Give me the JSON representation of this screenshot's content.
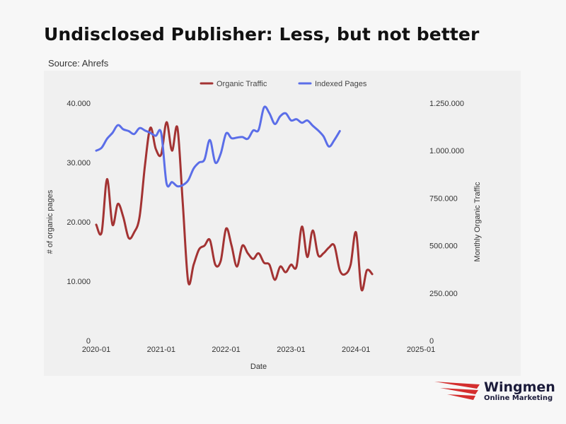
{
  "header": {
    "title": "Undisclosed Publisher: Less, but not better",
    "source": "Source: Ahrefs"
  },
  "brand": {
    "name": "Wingmen",
    "tagline": "Online Marketing",
    "color": "#d42e2e"
  },
  "chart_data": {
    "type": "line",
    "xlabel": "Date",
    "ylabel_left": "# of organic pages",
    "ylabel_right": "Monthly Organic Traffic",
    "x_range": [
      "2020-01",
      "2025-01"
    ],
    "x_ticks": [
      "2020-01",
      "2021-01",
      "2022-01",
      "2023-01",
      "2024-01",
      "2025-01"
    ],
    "y_left_ticks": [
      {
        "value": 0,
        "label": "0"
      },
      {
        "value": 10000,
        "label": "10.000"
      },
      {
        "value": 20000,
        "label": "20.000"
      },
      {
        "value": 30000,
        "label": "30.000"
      },
      {
        "value": 40000,
        "label": "40.000"
      }
    ],
    "y_left_range": [
      0,
      40000
    ],
    "y_right_ticks": [
      {
        "value": 0,
        "label": "0"
      },
      {
        "value": 250000,
        "label": "250.000"
      },
      {
        "value": 500000,
        "label": "500.000"
      },
      {
        "value": 750000,
        "label": "750.000"
      },
      {
        "value": 1000000,
        "label": "1.000.000"
      },
      {
        "value": 1250000,
        "label": "1.250.000"
      }
    ],
    "y_right_range": [
      0,
      1250000
    ],
    "grid": false,
    "legend_position": "top",
    "series": [
      {
        "name": "Organic Traffic",
        "axis": "right",
        "color": "#a33333",
        "points": [
          [
            "2020-01",
            610000
          ],
          [
            "2020-02",
            570000
          ],
          [
            "2020-03",
            850000
          ],
          [
            "2020-04",
            610000
          ],
          [
            "2020-05",
            720000
          ],
          [
            "2020-06",
            650000
          ],
          [
            "2020-07",
            540000
          ],
          [
            "2020-08",
            570000
          ],
          [
            "2020-09",
            650000
          ],
          [
            "2020-10",
            920000
          ],
          [
            "2020-11",
            1120000
          ],
          [
            "2020-12",
            1010000
          ],
          [
            "2021-01",
            980000
          ],
          [
            "2021-02",
            1150000
          ],
          [
            "2021-03",
            1000000
          ],
          [
            "2021-04",
            1120000
          ],
          [
            "2021-05",
            720000
          ],
          [
            "2021-06",
            310000
          ],
          [
            "2021-07",
            400000
          ],
          [
            "2021-08",
            480000
          ],
          [
            "2021-09",
            500000
          ],
          [
            "2021-10",
            530000
          ],
          [
            "2021-11",
            400000
          ],
          [
            "2021-12",
            420000
          ],
          [
            "2022-01",
            590000
          ],
          [
            "2022-02",
            500000
          ],
          [
            "2022-03",
            390000
          ],
          [
            "2022-04",
            500000
          ],
          [
            "2022-05",
            460000
          ],
          [
            "2022-06",
            430000
          ],
          [
            "2022-07",
            460000
          ],
          [
            "2022-08",
            410000
          ],
          [
            "2022-09",
            400000
          ],
          [
            "2022-10",
            320000
          ],
          [
            "2022-11",
            390000
          ],
          [
            "2022-12",
            360000
          ],
          [
            "2023-01",
            400000
          ],
          [
            "2023-02",
            390000
          ],
          [
            "2023-03",
            600000
          ],
          [
            "2023-04",
            440000
          ],
          [
            "2023-05",
            580000
          ],
          [
            "2023-06",
            450000
          ],
          [
            "2023-07",
            460000
          ],
          [
            "2023-08",
            490000
          ],
          [
            "2023-09",
            500000
          ],
          [
            "2023-10",
            370000
          ],
          [
            "2023-11",
            350000
          ],
          [
            "2023-12",
            400000
          ],
          [
            "2024-01",
            570000
          ],
          [
            "2024-02",
            270000
          ],
          [
            "2024-03",
            370000
          ],
          [
            "2024-04",
            350000
          ]
        ]
      },
      {
        "name": "Indexed Pages",
        "axis": "left",
        "color": "#5b6ee8",
        "points": [
          [
            "2020-01",
            32000
          ],
          [
            "2020-02",
            32500
          ],
          [
            "2020-03",
            34000
          ],
          [
            "2020-04",
            35000
          ],
          [
            "2020-05",
            36300
          ],
          [
            "2020-06",
            35600
          ],
          [
            "2020-07",
            35300
          ],
          [
            "2020-08",
            34800
          ],
          [
            "2020-09",
            35800
          ],
          [
            "2020-10",
            35400
          ],
          [
            "2020-11",
            35000
          ],
          [
            "2020-12",
            34500
          ],
          [
            "2021-01",
            35000
          ],
          [
            "2021-02",
            26500
          ],
          [
            "2021-03",
            26700
          ],
          [
            "2021-04",
            26000
          ],
          [
            "2021-05",
            26200
          ],
          [
            "2021-06",
            27000
          ],
          [
            "2021-07",
            29000
          ],
          [
            "2021-08",
            30000
          ],
          [
            "2021-09",
            30500
          ],
          [
            "2021-10",
            33800
          ],
          [
            "2021-11",
            30000
          ],
          [
            "2021-12",
            31500
          ],
          [
            "2022-01",
            34900
          ],
          [
            "2022-02",
            34100
          ],
          [
            "2022-03",
            34200
          ],
          [
            "2022-04",
            34300
          ],
          [
            "2022-05",
            34000
          ],
          [
            "2022-06",
            35400
          ],
          [
            "2022-07",
            35500
          ],
          [
            "2022-08",
            39300
          ],
          [
            "2022-09",
            38300
          ],
          [
            "2022-10",
            36500
          ],
          [
            "2022-11",
            37800
          ],
          [
            "2022-12",
            38300
          ],
          [
            "2023-01",
            37100
          ],
          [
            "2023-02",
            37300
          ],
          [
            "2023-03",
            36700
          ],
          [
            "2023-04",
            37100
          ],
          [
            "2023-05",
            36200
          ],
          [
            "2023-06",
            35400
          ],
          [
            "2023-07",
            34400
          ],
          [
            "2023-08",
            32700
          ],
          [
            "2023-09",
            33800
          ],
          [
            "2023-10",
            35300
          ]
        ]
      }
    ]
  }
}
